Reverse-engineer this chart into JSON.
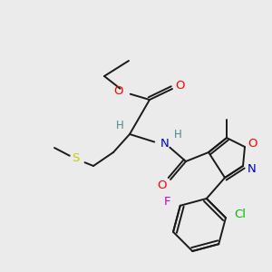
{
  "bg_color": "#ebebeb",
  "bond_color": "#1a1a1a",
  "atom_colors": {
    "O": "#ff0000",
    "N": "#0000cc",
    "S": "#cccc00",
    "F": "#cc00cc",
    "Cl": "#00bb00",
    "H": "#4a8888",
    "C_text": "#000000"
  },
  "figsize": [
    3.0,
    3.0
  ],
  "dpi": 100,
  "lw": 1.4
}
